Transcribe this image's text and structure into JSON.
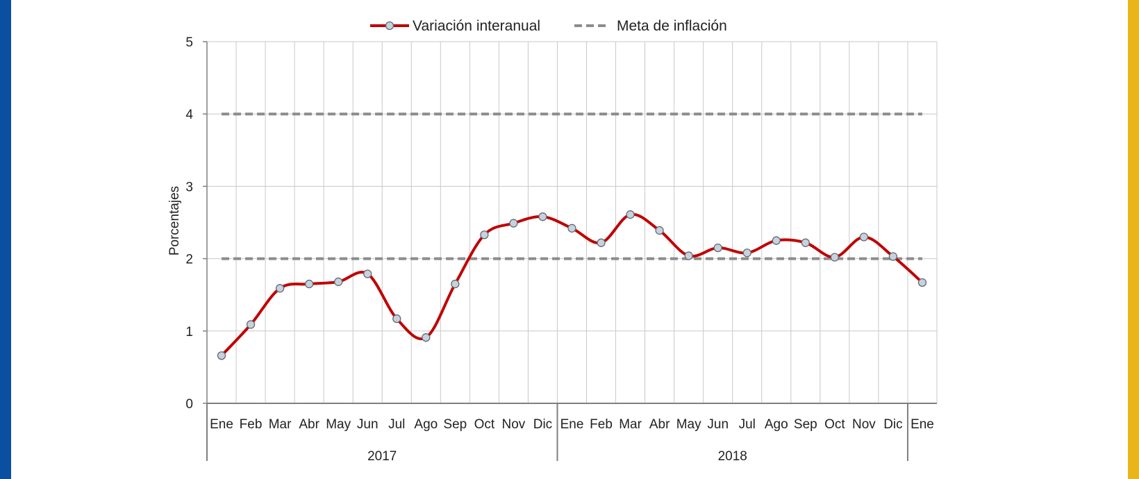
{
  "colors": {
    "left_stripe": "#0a4fa0",
    "right_stripe": "#e8b51a",
    "series_line": "#c00000",
    "marker_fill": "#c9d1dc",
    "marker_stroke": "#606a74",
    "target_line": "#8c8c8c",
    "grid": "#c8c8c8",
    "axis": "#7f7f7f"
  },
  "chart_data": {
    "type": "line",
    "title": "",
    "xlabel": "",
    "ylabel": "Porcentajes",
    "ylim": [
      0,
      5
    ],
    "yticks": [
      "0",
      "1",
      "2",
      "3",
      "4",
      "5"
    ],
    "grid": true,
    "legend_position": "top-center",
    "categories": [
      "Ene",
      "Feb",
      "Mar",
      "Abr",
      "May",
      "Jun",
      "Jul",
      "Ago",
      "Sep",
      "Oct",
      "Nov",
      "Dic",
      "Ene",
      "Feb",
      "Mar",
      "Abr",
      "May",
      "Jun",
      "Jul",
      "Ago",
      "Sep",
      "Oct",
      "Nov",
      "Dic",
      "Ene"
    ],
    "year_groups": [
      {
        "label": "2017",
        "start": 0,
        "end": 11
      },
      {
        "label": "2018",
        "start": 12,
        "end": 23
      }
    ],
    "series": [
      {
        "name": "Variación interanual",
        "style": "smooth-line-markers",
        "values": [
          0.66,
          1.09,
          1.59,
          1.65,
          1.68,
          1.79,
          1.17,
          0.91,
          1.65,
          2.33,
          2.49,
          2.58,
          2.42,
          2.22,
          2.61,
          2.39,
          2.04,
          2.15,
          2.08,
          2.25,
          2.22,
          2.02,
          2.3,
          2.03,
          1.67
        ]
      },
      {
        "name": "Meta de inflación",
        "style": "dashed",
        "bands": [
          2,
          4
        ]
      }
    ]
  }
}
